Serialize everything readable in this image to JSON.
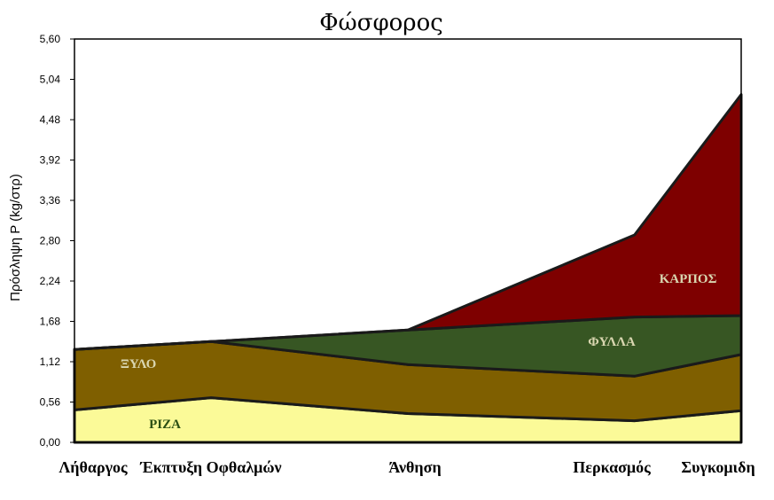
{
  "chart_data": {
    "type": "area",
    "stacked": true,
    "title": "Φώσφορος",
    "ylabel": "Πρόσληψη P (kg/στρ)",
    "xlabel": "",
    "categories": [
      "Λήθαργος",
      "Έκπτυξη Οφθαλμών",
      "Άνθηση",
      "Περκασμός",
      "Συγκομιδη"
    ],
    "x": [
      0,
      0.205,
      0.5,
      0.84,
      1.0
    ],
    "ylim": [
      0,
      5.6
    ],
    "yticks": [
      "0,00",
      "0,56",
      "1,12",
      "1,68",
      "2,24",
      "2,80",
      "3,36",
      "3,92",
      "4,48",
      "5,04",
      "5,60"
    ],
    "grid": false,
    "series": [
      {
        "name": "ΡΙΖΑ",
        "values": [
          0.45,
          0.62,
          0.4,
          0.3,
          0.44
        ],
        "color": "#fbfa98",
        "label_color": "#2c5014"
      },
      {
        "name": "ΞΥΛΟ",
        "values": [
          0.84,
          0.78,
          0.68,
          0.62,
          0.78
        ],
        "color": "#7f5f00",
        "label_color": "#d9d6b0"
      },
      {
        "name": "ΦΥΛΛΑ",
        "values": [
          0.0,
          0.0,
          0.48,
          0.82,
          0.54
        ],
        "color": "#375623",
        "label_color": "#d9d6b0"
      },
      {
        "name": "ΚΑΡΠΟΣ",
        "values": [
          0.0,
          0.0,
          0.0,
          1.14,
          3.07
        ],
        "color": "#7e0000",
        "label_color": "#d9d6b0"
      }
    ]
  }
}
